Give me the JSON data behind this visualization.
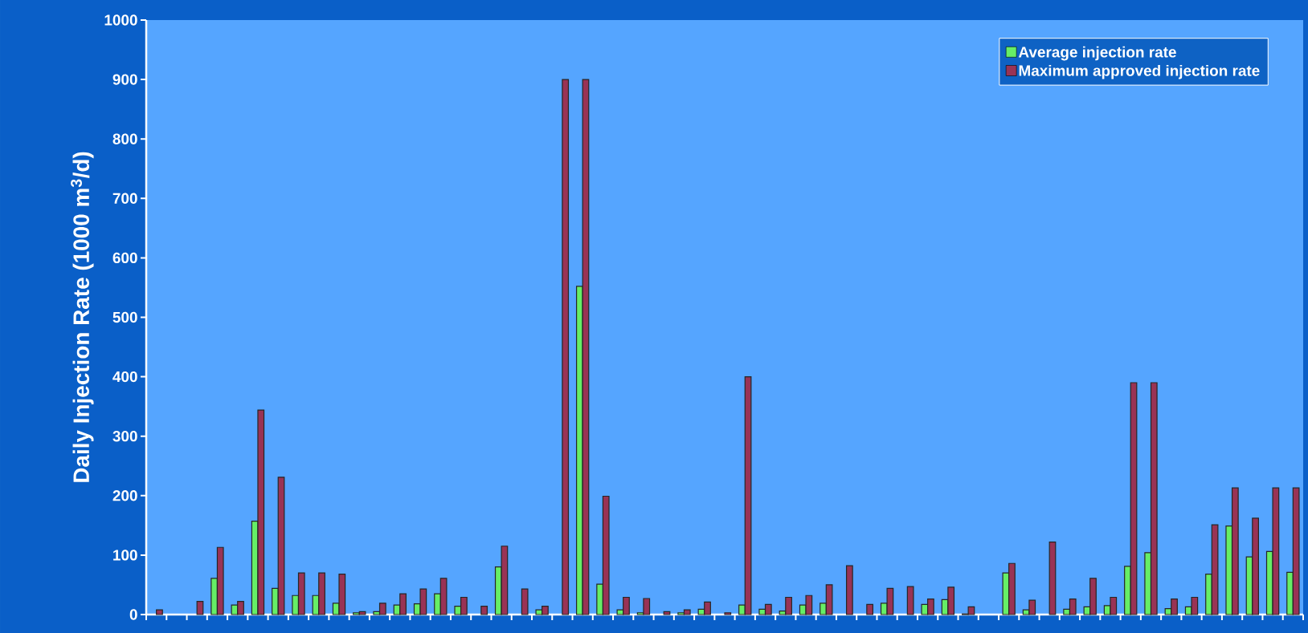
{
  "chart_data": {
    "type": "bar",
    "ylabel": "Daily Injection Rate (1000 m$^{3}$/d)",
    "categories": [
      null,
      null,
      null,
      null,
      null,
      null,
      null,
      null,
      null,
      null,
      null,
      null,
      null,
      null,
      null,
      null,
      null,
      null,
      null,
      null,
      null,
      null,
      null,
      null,
      null,
      null,
      null,
      null,
      null,
      null,
      null,
      null,
      null,
      null,
      null,
      null,
      null,
      null,
      null,
      null,
      null,
      null,
      null,
      null,
      null,
      null,
      null,
      null,
      null,
      null,
      null,
      null,
      null,
      null,
      null,
      null,
      null
    ],
    "series": [
      {
        "name": "Average injection rate",
        "color": "#66ee66",
        "values": [
          null,
          null,
          null,
          61,
          16,
          157,
          44,
          32,
          32,
          19,
          3,
          5,
          16,
          18,
          35,
          14,
          null,
          80,
          null,
          8,
          null,
          552,
          51,
          8,
          3,
          null,
          3,
          9,
          null,
          16,
          9,
          6,
          16,
          19,
          null,
          null,
          19,
          null,
          17,
          25,
          1,
          null,
          70,
          8,
          null,
          9,
          13,
          15,
          81,
          104,
          10,
          13,
          68,
          149,
          97,
          106,
          71
        ]
      },
      {
        "name": "Maximum approved injection rate",
        "color": "#993355",
        "values": [
          8,
          null,
          22,
          113,
          22,
          344,
          231,
          70,
          70,
          68,
          5,
          19,
          35,
          43,
          61,
          29,
          14,
          115,
          43,
          14,
          900,
          900,
          199,
          29,
          27,
          5,
          8,
          21,
          3,
          400,
          17,
          29,
          32,
          50,
          82,
          17,
          44,
          47,
          26,
          46,
          13,
          null,
          86,
          24,
          122,
          26,
          61,
          29,
          390,
          390,
          26,
          29,
          151,
          213,
          162,
          213,
          213
        ]
      }
    ],
    "ylim": [
      0,
      1000
    ],
    "yticks": [
      0,
      100,
      200,
      300,
      400,
      500,
      600,
      700,
      800,
      900,
      1000
    ],
    "tick_labels": "y",
    "legend": "top right"
  }
}
